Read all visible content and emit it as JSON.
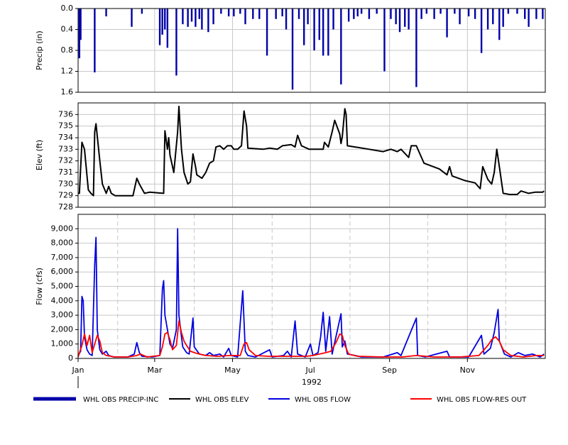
{
  "chart_data": [
    {
      "type": "bar",
      "ylabel": "Precip (in)",
      "ylim": [
        0,
        1.6
      ],
      "y_inverted": true,
      "yticks": [
        {
          "value": 0,
          "label": "0.0"
        },
        0.4,
        0.8,
        1.2,
        1.6
      ],
      "grid": true,
      "series": [
        {
          "name": "WHL OBS PRECIP-INC",
          "color": "#0000a8",
          "x": [
            2,
            3,
            14,
            23,
            43,
            51,
            65,
            67,
            69,
            71,
            78,
            83,
            87,
            90,
            93,
            96,
            98,
            103,
            107,
            113,
            119,
            123,
            128,
            132,
            138,
            143,
            149,
            156,
            161,
            164,
            169,
            174,
            178,
            181,
            186,
            190,
            193,
            197,
            201,
            207,
            213,
            217,
            220,
            223,
            229,
            235,
            241,
            246,
            250,
            253,
            257,
            260,
            266,
            270,
            274,
            280,
            285,
            290,
            296,
            300,
            307,
            312,
            317,
            322,
            326,
            331,
            334,
            338,
            345,
            351,
            354,
            360,
            365
          ],
          "values": [
            0.95,
            0.6,
            1.22,
            0.15,
            0.35,
            0.1,
            0.7,
            0.5,
            0.4,
            0.75,
            1.28,
            0.3,
            0.35,
            0.25,
            0.35,
            0.2,
            0.4,
            0.45,
            0.3,
            0.1,
            0.15,
            0.15,
            0.1,
            0.3,
            0.2,
            0.2,
            0.9,
            0.2,
            0.15,
            0.4,
            1.55,
            0.2,
            0.7,
            0.3,
            0.8,
            0.6,
            0.9,
            0.9,
            0.4,
            1.45,
            0.25,
            0.2,
            0.15,
            0.1,
            0.2,
            0.1,
            1.2,
            0.2,
            0.3,
            0.45,
            0.35,
            0.4,
            1.5,
            0.2,
            0.1,
            0.2,
            0.1,
            0.55,
            0.1,
            0.3,
            0.15,
            0.2,
            0.85,
            0.4,
            0.3,
            0.6,
            0.35,
            0.1,
            0.1,
            0.2,
            0.35,
            0.2,
            0.2
          ]
        }
      ]
    },
    {
      "type": "line",
      "ylabel": "Elev (ft)",
      "ylim": [
        728,
        737
      ],
      "yticks": [
        728,
        729,
        730,
        731,
        732,
        733,
        734,
        735,
        736
      ],
      "grid": true,
      "series": [
        {
          "name": "WHL OBS ELEV",
          "color": "#000000",
          "x": [
            1,
            2,
            4,
            6,
            9,
            11,
            13,
            14,
            15,
            18,
            20,
            23,
            25,
            27,
            30,
            40,
            44,
            47,
            49,
            53,
            57,
            68,
            69,
            71,
            72,
            73,
            76,
            79,
            80,
            82,
            84,
            87,
            89,
            91,
            93,
            94,
            98,
            101,
            104,
            107,
            109,
            112,
            115,
            118,
            121,
            123,
            126,
            129,
            131,
            133,
            134,
            146,
            151,
            157,
            161,
            168,
            171,
            173,
            176,
            182,
            193,
            194,
            197,
            200,
            202,
            206,
            207,
            208,
            210,
            211,
            212,
            218,
            229,
            240,
            246,
            251,
            254,
            260,
            262,
            266,
            268,
            272,
            284,
            290,
            292,
            294,
            304,
            312,
            316,
            318,
            322,
            325,
            327,
            329,
            331,
            334,
            339,
            345,
            348,
            354,
            359,
            365,
            366
          ],
          "values": [
            729.2,
            729.2,
            733.6,
            733,
            729.5,
            729.2,
            729.0,
            734.5,
            735.2,
            732,
            730,
            729.2,
            729.8,
            729.2,
            729.0,
            729.0,
            729.0,
            730.5,
            730.0,
            729.2,
            729.3,
            729.2,
            734.6,
            733.0,
            734.0,
            732.5,
            731,
            734.5,
            736.7,
            733,
            731,
            730,
            730.2,
            732.6,
            731.5,
            730.8,
            730.5,
            731,
            731.8,
            732,
            733.2,
            733.3,
            733,
            733.3,
            733.3,
            733,
            733,
            733.3,
            736.3,
            735,
            733.1,
            733,
            733.1,
            733,
            733.3,
            733.4,
            733.2,
            734.2,
            733.3,
            733,
            733,
            733.6,
            733.2,
            734.5,
            735.5,
            734.3,
            733.5,
            734.1,
            736.5,
            736,
            733.3,
            733.2,
            733,
            732.8,
            733,
            732.8,
            733,
            732.3,
            733.3,
            733.3,
            732.8,
            731.8,
            731.3,
            730.8,
            731.5,
            730.7,
            730.3,
            730.1,
            729.6,
            731.5,
            730.4,
            730,
            731,
            733,
            731.5,
            729.2,
            729.1,
            729.1,
            729.4,
            729.2,
            729.3,
            729.3,
            729.4
          ]
        }
      ]
    },
    {
      "type": "line",
      "ylabel": "Flow (cfs)",
      "ylim": [
        0,
        10000
      ],
      "yticks": [
        0,
        {
          "value": 1000,
          "label": "1,000"
        },
        {
          "value": 2000,
          "label": "2,000"
        },
        {
          "value": 3000,
          "label": "3,000"
        },
        {
          "value": 4000,
          "label": "4,000"
        },
        {
          "value": 5000,
          "label": "5,000"
        },
        {
          "value": 6000,
          "label": "6,000"
        },
        {
          "value": 7000,
          "label": "7,000"
        },
        {
          "value": 8000,
          "label": "8,000"
        },
        {
          "value": 9000,
          "label": "9,000"
        }
      ],
      "grid": true,
      "xlim": [
        1,
        367
      ],
      "xlabel": "1992",
      "xticks": [
        {
          "value": 1,
          "label": "Jan"
        },
        {
          "value": 61,
          "label": "Mar"
        },
        {
          "value": 122,
          "label": "May"
        },
        {
          "value": 183,
          "label": "Jul"
        },
        {
          "value": 245,
          "label": "Sep"
        },
        {
          "value": 306,
          "label": "Nov"
        }
      ],
      "x_minor_ticks": [
        32,
        92,
        153,
        214,
        275,
        336
      ],
      "series": [
        {
          "name": "WHL OBS FLOW",
          "color": "#0000e0",
          "x": [
            1,
            3,
            4,
            5,
            6,
            8,
            10,
            12,
            14,
            15,
            16,
            18,
            20,
            23,
            25,
            29,
            40,
            45,
            47,
            49,
            51,
            59,
            65,
            67,
            68,
            69,
            71,
            73,
            75,
            78,
            79,
            80,
            82,
            83,
            86,
            88,
            91,
            92,
            96,
            101,
            104,
            107,
            112,
            115,
            119,
            121,
            126,
            130,
            132,
            134,
            140,
            151,
            153,
            162,
            165,
            168,
            171,
            173,
            179,
            183,
            185,
            189,
            191,
            193,
            195,
            198,
            200,
            207,
            208,
            210,
            212,
            218,
            223,
            240,
            251,
            254,
            266,
            267,
            273,
            290,
            292,
            307,
            317,
            319,
            324,
            327,
            330,
            331,
            335,
            340,
            346,
            351,
            357,
            363,
            366
          ],
          "values": [
            200,
            500,
            4300,
            4000,
            1500,
            600,
            300,
            200,
            6500,
            8400,
            2000,
            600,
            300,
            500,
            200,
            100,
            100,
            300,
            1100,
            400,
            150,
            100,
            200,
            4800,
            5400,
            3000,
            2000,
            1000,
            700,
            2000,
            9000,
            3000,
            1500,
            800,
            400,
            300,
            2800,
            800,
            300,
            200,
            400,
            200,
            300,
            100,
            700,
            200,
            100,
            4700,
            500,
            200,
            100,
            600,
            100,
            200,
            500,
            100,
            2600,
            300,
            100,
            1000,
            200,
            400,
            1500,
            3200,
            500,
            2900,
            300,
            3100,
            800,
            1200,
            300,
            200,
            100,
            100,
            400,
            200,
            2800,
            200,
            100,
            500,
            100,
            100,
            1600,
            300,
            700,
            1800,
            3400,
            1200,
            300,
            100,
            400,
            200,
            300,
            100,
            300
          ]
        },
        {
          "name": "WHL OBS FLOW-RES OUT",
          "color": "#ff0000",
          "x": [
            1,
            4,
            6,
            8,
            10,
            12,
            14,
            16,
            18,
            20,
            23,
            30,
            40,
            47,
            50,
            55,
            65,
            67,
            69,
            71,
            73,
            75,
            78,
            80,
            82,
            84,
            86,
            89,
            92,
            96,
            101,
            110,
            120,
            128,
            131,
            133,
            135,
            140,
            150,
            160,
            170,
            180,
            185,
            190,
            195,
            199,
            203,
            206,
            208,
            210,
            213,
            220,
            240,
            255,
            266,
            280,
            300,
            315,
            318,
            322,
            325,
            328,
            331,
            334,
            340,
            350,
            360,
            366
          ],
          "values": [
            100,
            900,
            1700,
            900,
            1600,
            400,
            1000,
            1600,
            1200,
            400,
            200,
            100,
            100,
            200,
            300,
            100,
            200,
            800,
            1700,
            1800,
            1300,
            600,
            900,
            2600,
            1800,
            1200,
            900,
            500,
            400,
            300,
            200,
            150,
            200,
            200,
            1000,
            1100,
            600,
            200,
            150,
            150,
            150,
            150,
            200,
            300,
            400,
            500,
            1100,
            1700,
            1600,
            900,
            300,
            150,
            100,
            100,
            200,
            100,
            100,
            200,
            500,
            900,
            1300,
            1500,
            1200,
            600,
            200,
            100,
            200,
            200
          ]
        }
      ]
    }
  ]
}
